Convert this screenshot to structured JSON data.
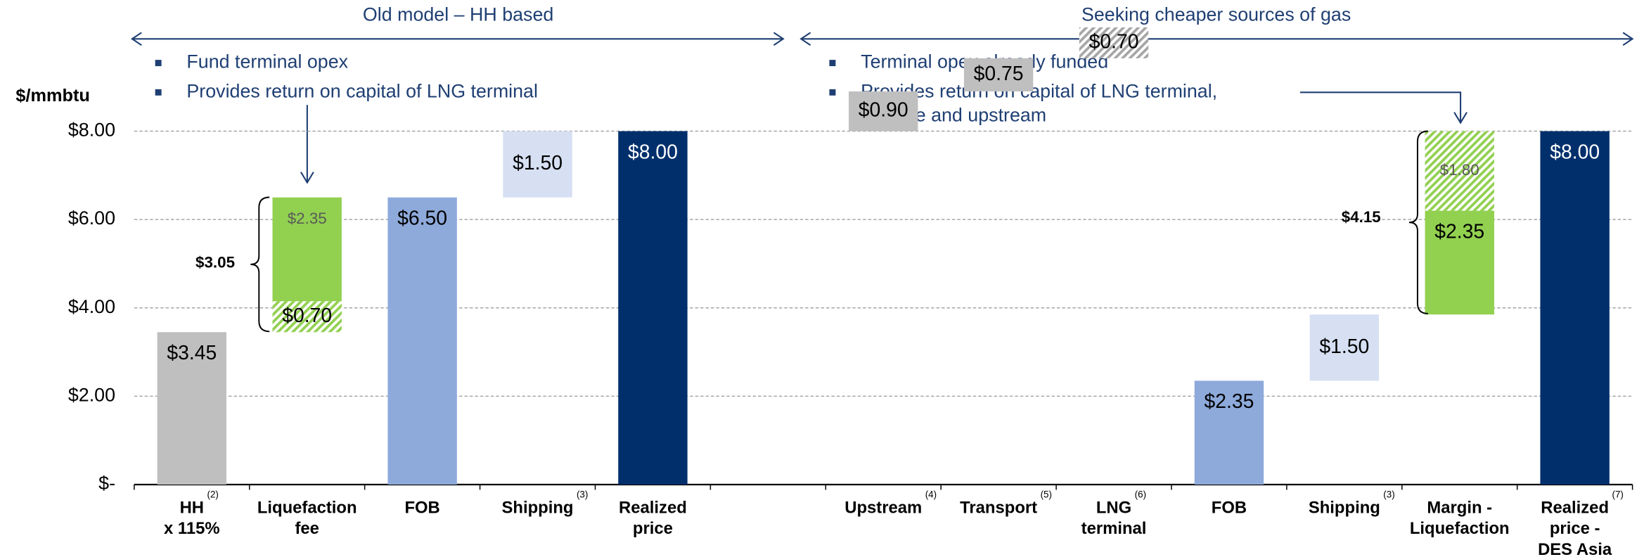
{
  "chart_data": {
    "type": "waterfall",
    "y_label": "$/mmbtu",
    "annotations": {
      "left_header": "Old model – HH based",
      "right_header": "Seeking cheaper sources of gas",
      "left_bullets": [
        [
          "Fund terminal opex"
        ],
        [
          "Provides return on capital of LNG terminal"
        ]
      ],
      "right_bullets": [
        [
          "Terminal opex already funded"
        ],
        [
          "Provides return on capital of LNG terminal,",
          "pipeline and upstream"
        ]
      ],
      "left_brace": "$3.05",
      "right_brace": "$4.15"
    },
    "categories": [
      [
        "HH",
        "x 115%"
      ],
      [
        "Liquefaction",
        "fee"
      ],
      [
        "FOB"
      ],
      [
        "Shipping"
      ],
      [
        "Realized",
        "price"
      ],
      null,
      [
        "Upstream"
      ],
      [
        "Transport"
      ],
      [
        "LNG",
        "terminal"
      ],
      [
        "FOB"
      ],
      [
        "Shipping"
      ],
      [
        "Margin -",
        "Liquefaction"
      ],
      [
        "Realized",
        "price -",
        "DES Asia"
      ]
    ],
    "footnotes": [
      "(2)",
      null,
      null,
      "(3)",
      null,
      null,
      "(4)",
      "(5)",
      "(6)",
      null,
      "(3)",
      null,
      "(7)"
    ],
    "totals": [
      false,
      false,
      true,
      false,
      true,
      false,
      false,
      false,
      false,
      true,
      false,
      false,
      true
    ],
    "values": [
      [
        3.45
      ],
      [
        0.7,
        2.35
      ],
      [
        6.5
      ],
      [
        1.5
      ],
      [
        8.0
      ],
      [],
      [
        0.9
      ],
      [
        0.75
      ],
      [
        0.7
      ],
      [
        2.35
      ],
      [
        1.5
      ],
      [
        2.35,
        1.8
      ],
      [
        8.0
      ]
    ],
    "value_labels": [
      [
        "$3.45"
      ],
      [
        "$0.70",
        "$2.35"
      ],
      [
        "$6.50"
      ],
      [
        "$1.50"
      ],
      [
        "$8.00"
      ],
      [],
      [
        "$0.90"
      ],
      [
        "$0.75"
      ],
      [
        "$0.70"
      ],
      [
        "$2.35"
      ],
      [
        "$1.50"
      ],
      [
        "$2.35",
        "$1.80"
      ],
      [
        "$8.00"
      ]
    ],
    "colors": [
      [
        "#bfbfbf"
      ],
      [
        "#92d050",
        "#92d050"
      ],
      [
        "#8eaadb"
      ],
      [
        "#d6e0f2"
      ],
      [
        "#002f6c"
      ],
      [],
      [
        "#bfbfbf"
      ],
      [
        "#bfbfbf"
      ],
      [
        "#a6a6a6"
      ],
      [
        "#8eaadb"
      ],
      [
        "#d6e0f2"
      ],
      [
        "#92d050",
        "#92d050"
      ],
      [
        "#002f6c"
      ]
    ],
    "hatched": [
      [
        false
      ],
      [
        true,
        false
      ],
      [
        false
      ],
      [
        false
      ],
      [
        false
      ],
      [],
      [
        false
      ],
      [
        false
      ],
      [
        true
      ],
      [
        false
      ],
      [
        false
      ],
      [
        false,
        true
      ],
      [
        false
      ]
    ],
    "label_colors": [
      [
        "#000000"
      ],
      [
        "#000000",
        "#595959"
      ],
      [
        "#000000"
      ],
      [
        "#000000"
      ],
      [
        "#ffffff"
      ],
      [],
      [
        "#000000"
      ],
      [
        "#000000"
      ],
      [
        "#000000"
      ],
      [
        "#000000"
      ],
      [
        "#000000"
      ],
      [
        "#000000",
        "#595959"
      ],
      [
        "#ffffff"
      ]
    ],
    "ylim": [
      0,
      8
    ],
    "yticks": [
      {
        "value": 0,
        "label": "$-"
      },
      {
        "value": 2,
        "label": "$2.00"
      },
      {
        "value": 4,
        "label": "$4.00"
      },
      {
        "value": 6,
        "label": "$6.00"
      },
      {
        "value": 8,
        "label": "$8.00"
      }
    ],
    "grid": true
  }
}
